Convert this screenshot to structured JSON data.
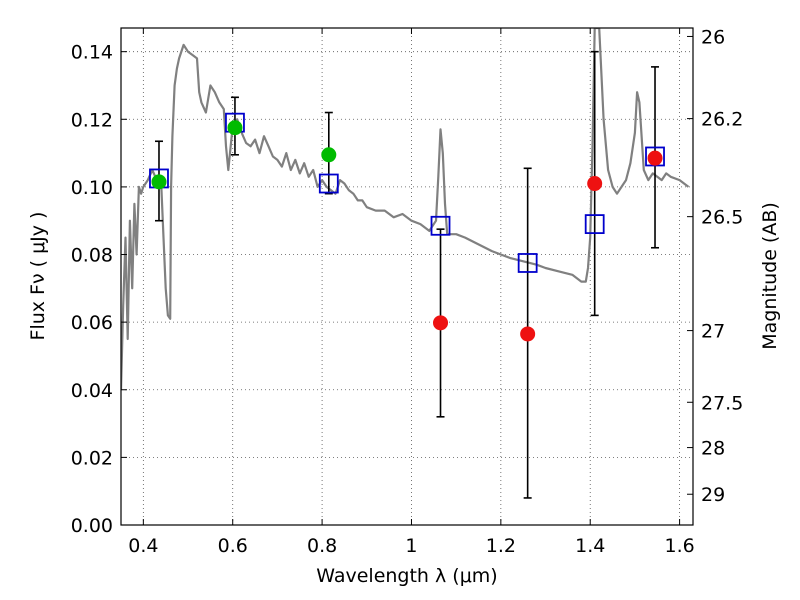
{
  "chart_data": {
    "type": "scatter",
    "title": "",
    "xlabel": "Wavelength  λ (μm)",
    "ylabel": "Flux  Fν  ( μJy )",
    "ylabel_right": "Magnitude (AB)",
    "xlim": [
      0.35,
      1.63
    ],
    "ylim": [
      0.0,
      0.147
    ],
    "grid": true,
    "x_ticks": [
      0.4,
      0.6,
      0.8,
      1.0,
      1.2,
      1.4,
      1.6
    ],
    "x_tick_labels": [
      "0.4",
      "0.6",
      "0.8",
      "1",
      "1.2",
      "1.4",
      "1.6"
    ],
    "y_ticks": [
      0.0,
      0.02,
      0.04,
      0.06,
      0.08,
      0.1,
      0.12,
      0.14
    ],
    "y_tick_labels": [
      "0.00",
      "0.02",
      "0.04",
      "0.06",
      "0.08",
      "0.10",
      "0.12",
      "0.14"
    ],
    "right_ticks": [
      {
        "label": "26",
        "flux": 0.1445
      },
      {
        "label": "26.2",
        "flux": 0.1202
      },
      {
        "label": "26.5",
        "flux": 0.0912
      },
      {
        "label": "27",
        "flux": 0.0575
      },
      {
        "label": "27.5",
        "flux": 0.0363
      },
      {
        "label": "28",
        "flux": 0.0229
      },
      {
        "label": "29",
        "flux": 0.0091
      }
    ],
    "colors": {
      "sed_line": "#808080",
      "observed_green": "#00bb00",
      "observed_red": "#ee1111",
      "model_box": "#0000cc",
      "errorbar": "#000000",
      "grid": "#555555"
    },
    "series": [
      {
        "kind": "line",
        "points": [
          [
            0.35,
            0.04
          ],
          [
            0.355,
            0.065
          ],
          [
            0.36,
            0.085
          ],
          [
            0.365,
            0.055
          ],
          [
            0.37,
            0.09
          ],
          [
            0.375,
            0.07
          ],
          [
            0.38,
            0.095
          ],
          [
            0.385,
            0.08
          ],
          [
            0.39,
            0.1
          ],
          [
            0.395,
            0.098
          ],
          [
            0.4,
            0.1
          ],
          [
            0.41,
            0.102
          ],
          [
            0.42,
            0.105
          ],
          [
            0.43,
            0.102
          ],
          [
            0.44,
            0.101
          ],
          [
            0.445,
            0.085
          ],
          [
            0.45,
            0.07
          ],
          [
            0.455,
            0.062
          ],
          [
            0.46,
            0.061
          ],
          [
            0.462,
            0.1
          ],
          [
            0.465,
            0.115
          ],
          [
            0.47,
            0.13
          ],
          [
            0.475,
            0.135
          ],
          [
            0.48,
            0.138
          ],
          [
            0.49,
            0.142
          ],
          [
            0.5,
            0.14
          ],
          [
            0.51,
            0.139
          ],
          [
            0.52,
            0.138
          ],
          [
            0.525,
            0.128
          ],
          [
            0.53,
            0.125
          ],
          [
            0.54,
            0.122
          ],
          [
            0.55,
            0.13
          ],
          [
            0.56,
            0.128
          ],
          [
            0.57,
            0.125
          ],
          [
            0.58,
            0.123
          ],
          [
            0.585,
            0.112
          ],
          [
            0.59,
            0.105
          ],
          [
            0.6,
            0.118
          ],
          [
            0.61,
            0.12
          ],
          [
            0.62,
            0.116
          ],
          [
            0.63,
            0.113
          ],
          [
            0.64,
            0.112
          ],
          [
            0.65,
            0.114
          ],
          [
            0.66,
            0.11
          ],
          [
            0.67,
            0.115
          ],
          [
            0.68,
            0.112
          ],
          [
            0.69,
            0.109
          ],
          [
            0.7,
            0.108
          ],
          [
            0.71,
            0.106
          ],
          [
            0.72,
            0.11
          ],
          [
            0.73,
            0.105
          ],
          [
            0.74,
            0.108
          ],
          [
            0.75,
            0.104
          ],
          [
            0.76,
            0.107
          ],
          [
            0.77,
            0.103
          ],
          [
            0.78,
            0.105
          ],
          [
            0.79,
            0.1
          ],
          [
            0.8,
            0.102
          ],
          [
            0.81,
            0.1
          ],
          [
            0.82,
            0.099
          ],
          [
            0.83,
            0.098
          ],
          [
            0.84,
            0.102
          ],
          [
            0.85,
            0.101
          ],
          [
            0.86,
            0.099
          ],
          [
            0.87,
            0.098
          ],
          [
            0.88,
            0.096
          ],
          [
            0.89,
            0.096
          ],
          [
            0.9,
            0.094
          ],
          [
            0.92,
            0.093
          ],
          [
            0.94,
            0.093
          ],
          [
            0.96,
            0.091
          ],
          [
            0.98,
            0.092
          ],
          [
            1.0,
            0.09
          ],
          [
            1.02,
            0.089
          ],
          [
            1.04,
            0.087
          ],
          [
            1.055,
            0.09
          ],
          [
            1.06,
            0.103
          ],
          [
            1.065,
            0.117
          ],
          [
            1.07,
            0.11
          ],
          [
            1.075,
            0.095
          ],
          [
            1.08,
            0.086
          ],
          [
            1.1,
            0.086
          ],
          [
            1.12,
            0.085
          ],
          [
            1.15,
            0.083
          ],
          [
            1.18,
            0.081
          ],
          [
            1.2,
            0.08
          ],
          [
            1.22,
            0.079
          ],
          [
            1.25,
            0.078
          ],
          [
            1.28,
            0.077
          ],
          [
            1.3,
            0.076
          ],
          [
            1.33,
            0.075
          ],
          [
            1.36,
            0.074
          ],
          [
            1.38,
            0.072
          ],
          [
            1.39,
            0.072
          ],
          [
            1.395,
            0.076
          ],
          [
            1.4,
            0.085
          ],
          [
            1.405,
            0.112
          ],
          [
            1.41,
            0.147
          ],
          [
            1.42,
            0.147
          ],
          [
            1.43,
            0.12
          ],
          [
            1.44,
            0.105
          ],
          [
            1.45,
            0.1
          ],
          [
            1.46,
            0.098
          ],
          [
            1.47,
            0.1
          ],
          [
            1.48,
            0.102
          ],
          [
            1.49,
            0.107
          ],
          [
            1.5,
            0.116
          ],
          [
            1.505,
            0.128
          ],
          [
            1.51,
            0.125
          ],
          [
            1.52,
            0.105
          ],
          [
            1.53,
            0.102
          ],
          [
            1.54,
            0.104
          ],
          [
            1.55,
            0.103
          ],
          [
            1.56,
            0.102
          ],
          [
            1.57,
            0.104
          ],
          [
            1.58,
            0.103
          ],
          [
            1.6,
            0.102
          ],
          [
            1.62,
            0.1
          ]
        ]
      },
      {
        "kind": "points",
        "points": [
          {
            "x": 0.435,
            "y": 0.1015,
            "err": [
              0.09,
              0.1135
            ],
            "color": "green"
          },
          {
            "x": 0.605,
            "y": 0.1175,
            "err": [
              0.1095,
              0.1265
            ],
            "color": "green"
          },
          {
            "x": 0.815,
            "y": 0.1095,
            "err": [
              0.098,
              0.122
            ],
            "color": "green"
          },
          {
            "x": 1.065,
            "y": 0.0598,
            "err": [
              0.032,
              0.0875
            ],
            "color": "red"
          },
          {
            "x": 1.26,
            "y": 0.0565,
            "err": [
              0.008,
              0.1055
            ],
            "color": "red"
          },
          {
            "x": 1.41,
            "y": 0.101,
            "err": [
              0.062,
              0.14
            ],
            "color": "red"
          },
          {
            "x": 1.545,
            "y": 0.1085,
            "err": [
              0.082,
              0.1355
            ],
            "color": "red"
          }
        ]
      },
      {
        "kind": "boxes",
        "points": [
          [
            0.435,
            0.1025
          ],
          [
            0.605,
            0.119
          ],
          [
            0.815,
            0.101
          ],
          [
            1.065,
            0.0885
          ],
          [
            1.26,
            0.0775
          ],
          [
            1.41,
            0.089
          ],
          [
            1.545,
            0.109
          ]
        ]
      }
    ]
  }
}
